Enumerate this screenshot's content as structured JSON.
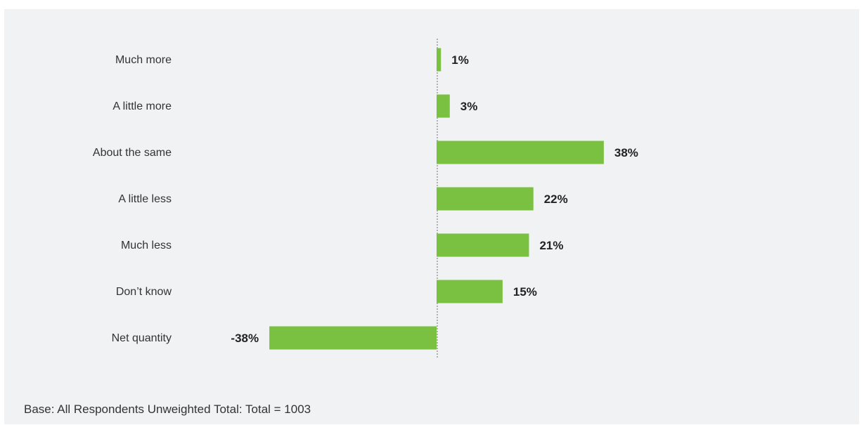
{
  "chart_data": {
    "type": "bar",
    "orientation": "horizontal",
    "title": "",
    "xlabel": "",
    "ylabel": "",
    "categories": [
      "Much more",
      "A little more",
      "About the same",
      "A little less",
      "Much less",
      "Don’t know",
      "Net quantity"
    ],
    "values": [
      1,
      3,
      38,
      22,
      21,
      15,
      -38
    ],
    "value_labels": [
      "1%",
      "3%",
      "38%",
      "22%",
      "21%",
      "15%",
      "-38%"
    ],
    "value_unit": "%",
    "grid": false,
    "bar_color": "#7ac142",
    "baseline": "dotted vertical line at 0"
  },
  "footer": {
    "base_note": "Base: All Respondents Unweighted Total: Total = 1003"
  },
  "colors": {
    "panel_background": "#f1f2f4",
    "bar": "#7ac142",
    "text": "#333333",
    "value_label": "#222222"
  }
}
